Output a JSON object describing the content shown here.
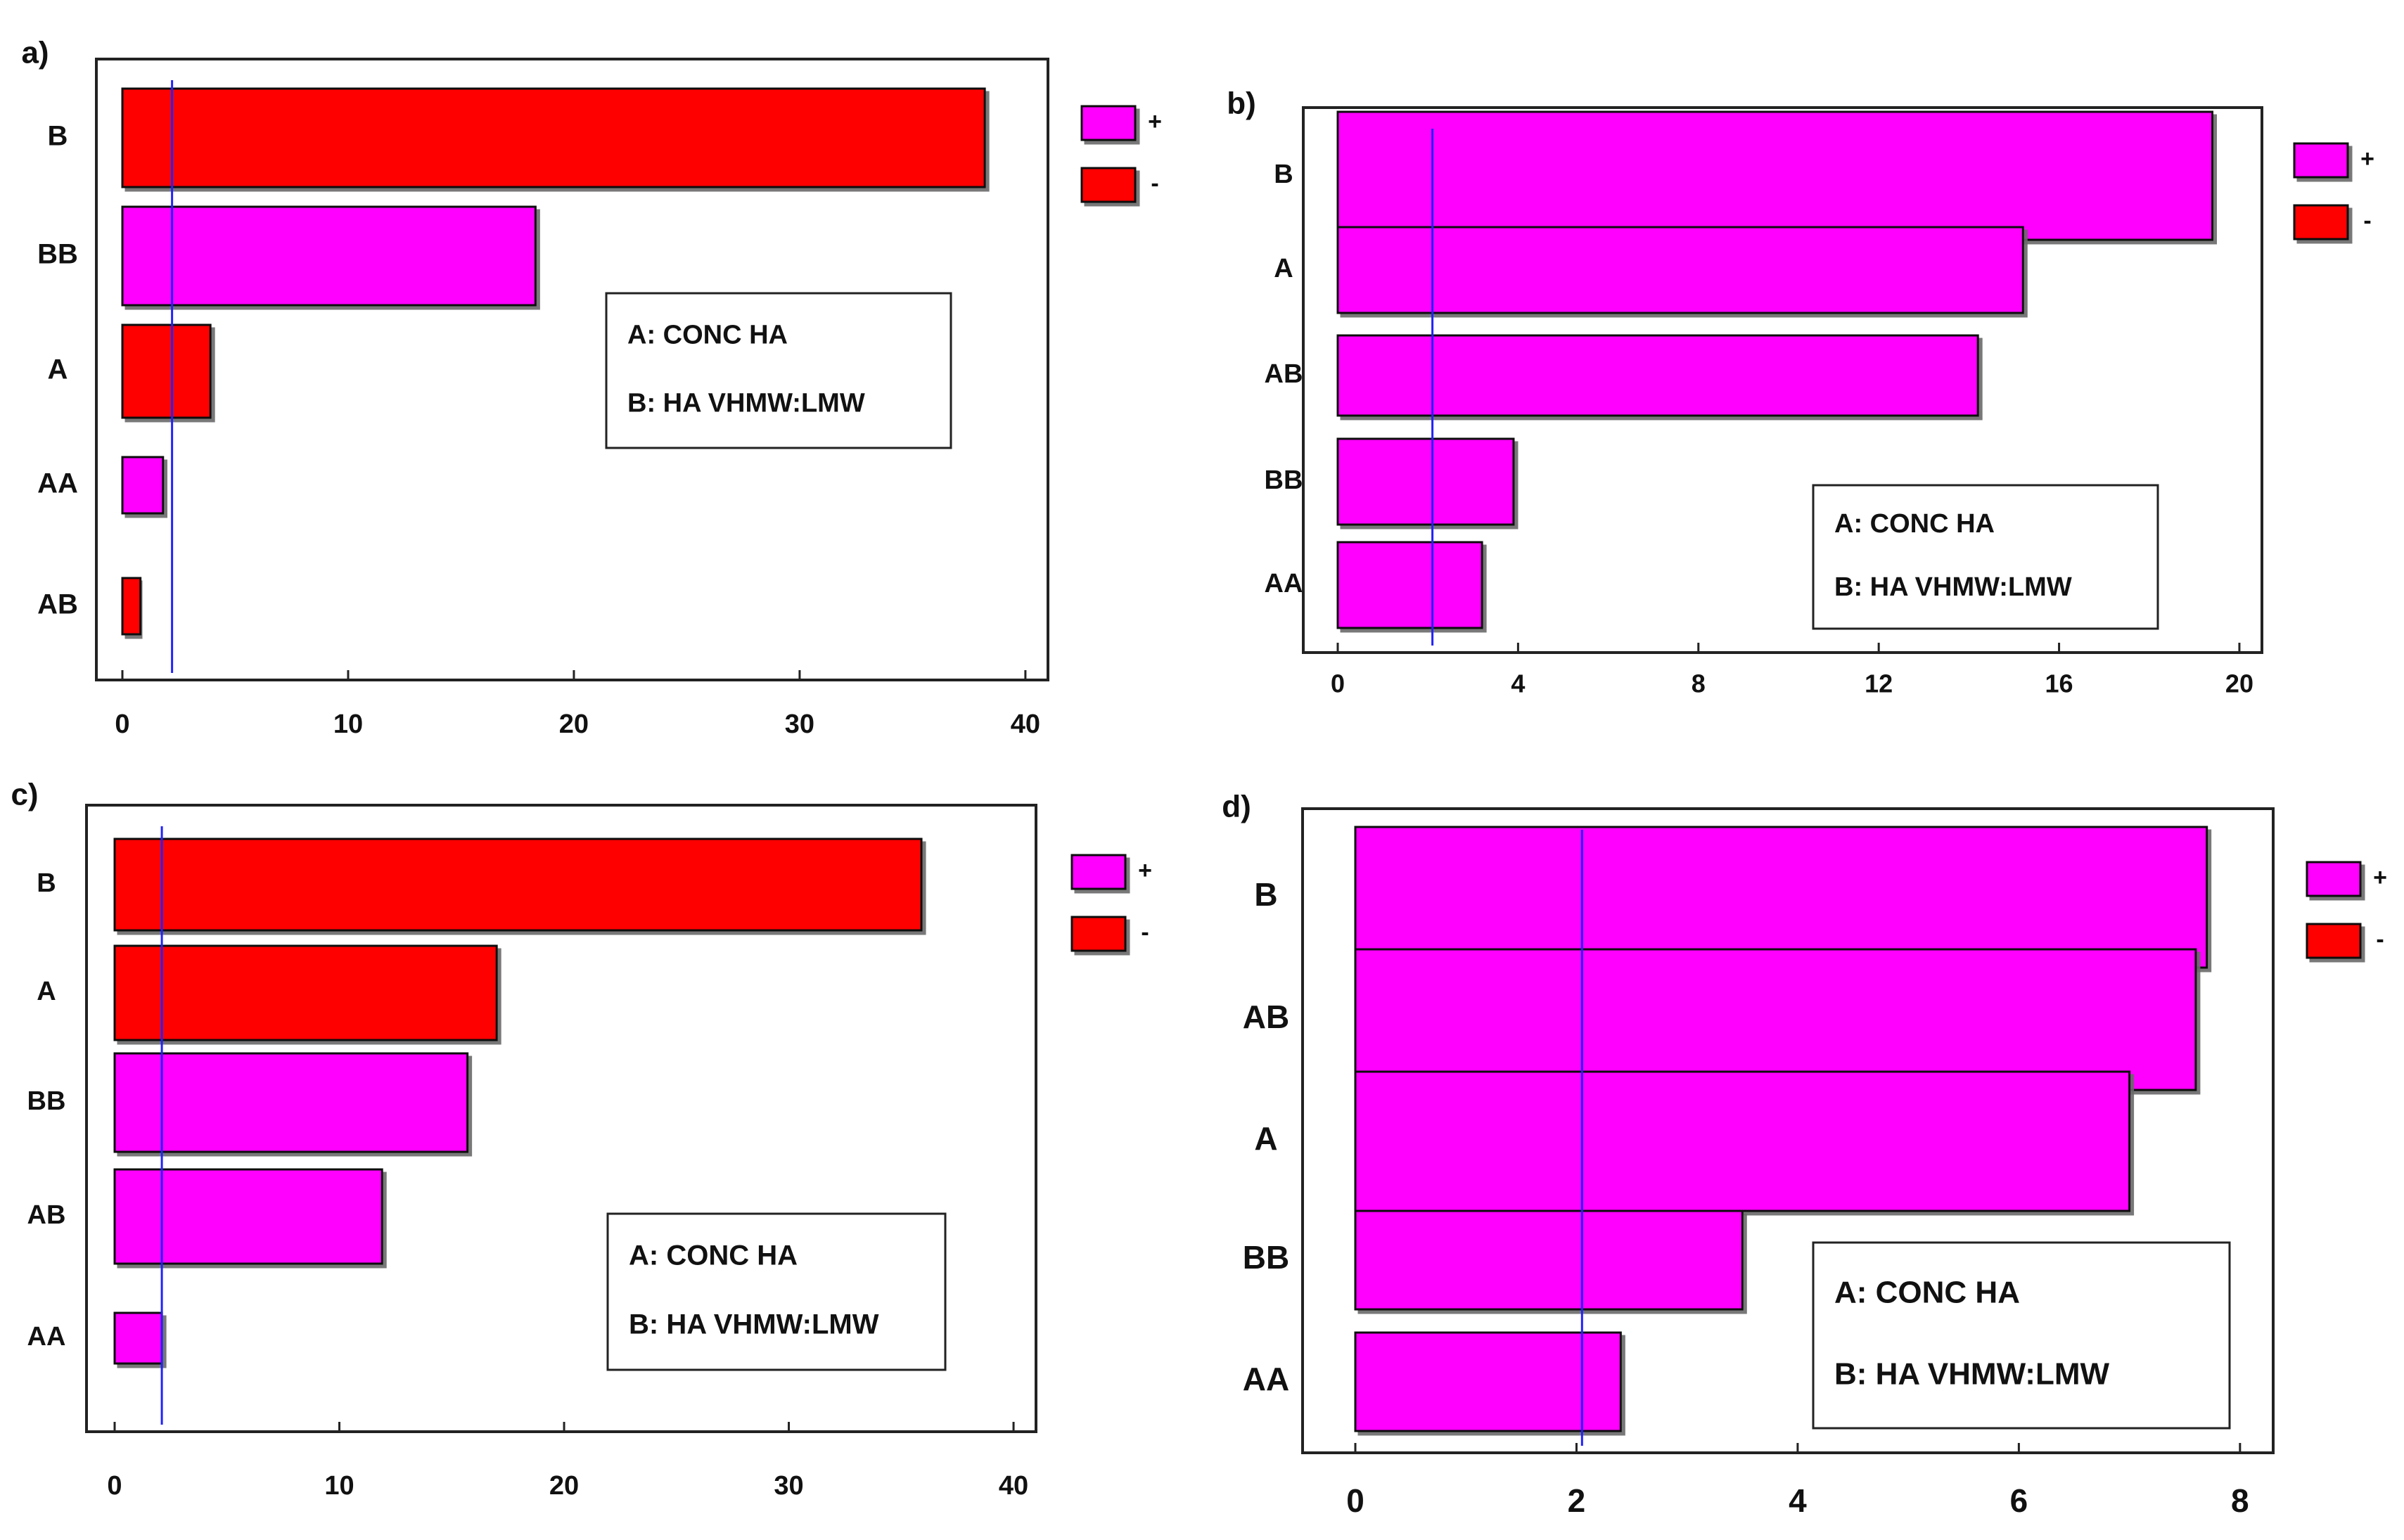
{
  "figure": {
    "description_free": true
  },
  "legend": {
    "pos_label": "+",
    "neg_label": "-"
  },
  "colors": {
    "positive": "#ff00ff",
    "negative": "#ff0000",
    "ref_line": "#2222ff",
    "frame": "#222222"
  },
  "chart_data": [
    {
      "id": "a",
      "panel_label": "a)",
      "type": "bar",
      "orientation": "horizontal",
      "categories": [
        "B",
        "BB",
        "A",
        "AA",
        "AB"
      ],
      "values": [
        38.2,
        18.3,
        3.9,
        1.8,
        0.8
      ],
      "signs": [
        "-",
        "+",
        "-",
        "+",
        "-"
      ],
      "xlim": [
        0,
        41
      ],
      "xticks": [
        "0",
        "10",
        "20",
        "30",
        "40"
      ],
      "tick_values": [
        0,
        10,
        20,
        30,
        40
      ],
      "ref_line": 2.2,
      "note": {
        "line1": "A: CONC HA",
        "line2": "B: HA VHMW:LMW"
      },
      "title": "",
      "xlabel": "",
      "ylabel": ""
    },
    {
      "id": "b",
      "panel_label": "b)",
      "type": "bar",
      "orientation": "horizontal",
      "categories": [
        "B",
        "A",
        "AB",
        "BB",
        "AA"
      ],
      "values": [
        19.4,
        15.2,
        14.2,
        3.9,
        3.2
      ],
      "signs": [
        "+",
        "+",
        "+",
        "+",
        "+"
      ],
      "xlim": [
        0,
        20.5
      ],
      "xticks": [
        "0",
        "4",
        "8",
        "12",
        "16",
        "20"
      ],
      "tick_values": [
        0,
        4,
        8,
        12,
        16,
        20
      ],
      "ref_line": 2.1,
      "note": {
        "line1": "A: CONC HA",
        "line2": "B: HA VHMW:LMW"
      },
      "title": "",
      "xlabel": "",
      "ylabel": ""
    },
    {
      "id": "c",
      "panel_label": "c)",
      "type": "bar",
      "orientation": "horizontal",
      "categories": [
        "B",
        "A",
        "BB",
        "AB",
        "AA"
      ],
      "values": [
        35.9,
        17.0,
        15.7,
        11.9,
        2.1
      ],
      "signs": [
        "-",
        "-",
        "+",
        "+",
        "+"
      ],
      "xlim": [
        0,
        41
      ],
      "xticks": [
        "0",
        "10",
        "20",
        "30",
        "40"
      ],
      "tick_values": [
        0,
        10,
        20,
        30,
        40
      ],
      "ref_line": 2.1,
      "note": {
        "line1": "A: CONC HA",
        "line2": "B: HA VHMW:LMW"
      },
      "title": "",
      "xlabel": "",
      "ylabel": ""
    },
    {
      "id": "d",
      "panel_label": "d)",
      "type": "bar",
      "orientation": "horizontal",
      "categories": [
        "B",
        "AB",
        "A",
        "BB",
        "AA"
      ],
      "values": [
        7.7,
        7.6,
        7.0,
        3.5,
        2.4
      ],
      "signs": [
        "+",
        "+",
        "+",
        "+",
        "+"
      ],
      "xlim": [
        0,
        8.3
      ],
      "xticks": [
        "0",
        "2",
        "4",
        "6",
        "8"
      ],
      "tick_values": [
        0,
        2,
        4,
        6,
        8
      ],
      "ref_line": 2.05,
      "note": {
        "line1": "A: CONC HA",
        "line2": "B: HA VHMW:LMW"
      },
      "title": "",
      "xlabel": "",
      "ylabel": ""
    }
  ]
}
